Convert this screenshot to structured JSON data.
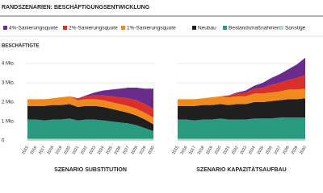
{
  "title": "RANDSZENARIEN: BESCHÄFTIGUNGSENTWICKLUNG",
  "y_label": "BESCHÄFTIGTE",
  "chart_data": [
    {
      "type": "stacked_area",
      "title": "SZENARIO SUBSTITUTION",
      "categories": [
        "2015",
        "2016",
        "2017",
        "2018",
        "2019",
        "2020",
        "2021",
        "2022",
        "2023",
        "2024",
        "2025",
        "2026",
        "2027",
        "2028",
        "2029",
        "2030"
      ],
      "ylim": [
        0,
        4.4
      ],
      "yticks": [
        0,
        {
          "value": 1,
          "label": "1 Mio."
        },
        {
          "value": 2,
          "label": "2 Mio."
        },
        {
          "value": 3,
          "label": "3 Mio."
        },
        {
          "value": 4,
          "label": "4 Mio."
        }
      ],
      "grid": true,
      "series": [
        {
          "name": "4%-Sanierungsquote",
          "color": "#6a2c8c",
          "values": [
            0,
            0,
            0,
            0,
            0,
            0,
            0,
            0.05,
            0.15,
            0.25,
            0.35,
            0.45,
            0.55,
            0.65,
            0.8,
            1.05
          ]
        },
        {
          "name": "2%-Sanierungsquote",
          "color": "#d9302b",
          "values": [
            0,
            0,
            0,
            0,
            0,
            0,
            0.1,
            0.15,
            0.2,
            0.25,
            0.3,
            0.35,
            0.4,
            0.45,
            0.45,
            0.45
          ]
        },
        {
          "name": "1%-Sanierungsquote",
          "color": "#f08a1c",
          "values": [
            0.35,
            0.35,
            0.35,
            0.35,
            0.4,
            0.4,
            0.35,
            0.35,
            0.35,
            0.35,
            0.35,
            0.35,
            0.35,
            0.35,
            0.35,
            0.35
          ]
        },
        {
          "name": "Neubau",
          "color": "#1f1f1f",
          "values": [
            0.7,
            0.7,
            0.75,
            0.75,
            0.75,
            0.75,
            0.7,
            0.7,
            0.7,
            0.7,
            0.65,
            0.6,
            0.55,
            0.5,
            0.45,
            0.35
          ]
        },
        {
          "name": "Bestandsmaßnahmen",
          "color": "#2a9a7f",
          "values": [
            1.0,
            1.0,
            0.95,
            1.0,
            1.0,
            1.05,
            0.95,
            1.0,
            1.0,
            0.95,
            0.9,
            0.85,
            0.8,
            0.7,
            0.55,
            0.4
          ]
        },
        {
          "name": "Sonstige",
          "color": "#b9d9c8",
          "values": [
            0.1,
            0.1,
            0.1,
            0.1,
            0.1,
            0.1,
            0.1,
            0.1,
            0.1,
            0.1,
            0.1,
            0.1,
            0.1,
            0.1,
            0.1,
            0.1
          ]
        }
      ]
    },
    {
      "type": "stacked_area",
      "title": "SZENARIO KAPAZITÄTSAUFBAU",
      "categories": [
        "2015",
        "2016",
        "2017",
        "2018",
        "2019",
        "2020",
        "2021",
        "2022",
        "2023",
        "2024",
        "2025",
        "2026",
        "2027",
        "2028",
        "2029",
        "2030"
      ],
      "ylim": [
        0,
        4.4
      ],
      "yticks": [
        0,
        1,
        2,
        3,
        4
      ],
      "grid": true,
      "series": [
        {
          "values": [
            0,
            0,
            0,
            0,
            0,
            0,
            0,
            0.05,
            0.1,
            0.15,
            0.25,
            0.35,
            0.45,
            0.55,
            0.7,
            0.9
          ]
        },
        {
          "values": [
            0,
            0,
            0,
            0,
            0,
            0,
            0.1,
            0.15,
            0.2,
            0.25,
            0.3,
            0.4,
            0.45,
            0.5,
            0.6,
            0.7
          ]
        },
        {
          "values": [
            0.35,
            0.35,
            0.35,
            0.35,
            0.4,
            0.4,
            0.4,
            0.4,
            0.4,
            0.45,
            0.45,
            0.45,
            0.45,
            0.5,
            0.5,
            0.5
          ]
        },
        {
          "values": [
            0.7,
            0.7,
            0.75,
            0.75,
            0.75,
            0.75,
            0.75,
            0.8,
            0.8,
            0.85,
            0.85,
            0.9,
            0.9,
            0.95,
            0.95,
            1.0
          ]
        },
        {
          "values": [
            1.0,
            1.0,
            0.95,
            1.0,
            1.0,
            1.05,
            1.0,
            1.0,
            1.0,
            1.05,
            1.05,
            1.05,
            1.1,
            1.1,
            1.1,
            1.1
          ]
        },
        {
          "values": [
            0.1,
            0.1,
            0.1,
            0.1,
            0.1,
            0.1,
            0.1,
            0.1,
            0.1,
            0.1,
            0.1,
            0.1,
            0.1,
            0.1,
            0.1,
            0.1
          ]
        }
      ]
    }
  ]
}
